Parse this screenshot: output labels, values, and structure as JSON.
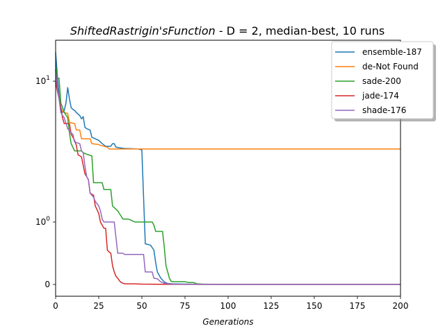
{
  "chart_data": {
    "type": "line",
    "title_italic": "ShiftedRastrigin'sFunction",
    "title_rest": " - D = 2, median-best, 10 runs",
    "xlabel": "Generations",
    "ylabel": "",
    "xlim": [
      0,
      200
    ],
    "yscale": "symlog",
    "xticks": [
      0,
      25,
      50,
      75,
      100,
      125,
      150,
      175,
      200
    ],
    "yticks": [
      {
        "value": 0,
        "label": "0"
      },
      {
        "value": 1,
        "label": "10^0"
      },
      {
        "value": 10,
        "label": "10^1"
      }
    ],
    "grid": false,
    "legend_position": "top-right",
    "series": [
      {
        "name": "ensemble-187",
        "color": "#1f77b4",
        "points": [
          [
            0,
            16
          ],
          [
            1,
            11
          ],
          [
            2,
            8
          ],
          [
            3,
            6.5
          ],
          [
            4,
            6
          ],
          [
            5,
            6.2
          ],
          [
            6,
            7
          ],
          [
            7,
            9
          ],
          [
            8,
            7.5
          ],
          [
            9,
            6.5
          ],
          [
            10,
            6.3
          ],
          [
            11,
            6.2
          ],
          [
            12,
            6
          ],
          [
            14,
            5.7
          ],
          [
            15,
            5.4
          ],
          [
            16,
            5.6
          ],
          [
            17,
            4.7
          ],
          [
            18,
            4.6
          ],
          [
            20,
            4.5
          ],
          [
            21,
            4.0
          ],
          [
            23,
            3.9
          ],
          [
            25,
            3.8
          ],
          [
            27,
            3.6
          ],
          [
            29,
            3.45
          ],
          [
            32,
            3.45
          ],
          [
            33,
            3.6
          ],
          [
            34,
            3.6
          ],
          [
            35,
            3.4
          ],
          [
            38,
            3.35
          ],
          [
            40,
            3.33
          ],
          [
            48,
            3.3
          ],
          [
            50,
            3.25
          ],
          [
            51,
            1.5
          ],
          [
            52,
            0.65
          ],
          [
            55,
            0.63
          ],
          [
            57,
            0.55
          ],
          [
            58,
            0.35
          ],
          [
            59,
            0.2
          ],
          [
            61,
            0.1
          ],
          [
            63,
            0.04
          ],
          [
            65,
            0.015
          ],
          [
            68,
            0.01
          ],
          [
            75,
            0.005
          ],
          [
            85,
            0.002
          ],
          [
            100,
            0.001
          ],
          [
            200,
            0.001
          ]
        ]
      },
      {
        "name": "de-Not Found",
        "color": "#ff7f0e",
        "points": [
          [
            0,
            12
          ],
          [
            1,
            9
          ],
          [
            2,
            7.5
          ],
          [
            3,
            6.5
          ],
          [
            4,
            6.1
          ],
          [
            5,
            6
          ],
          [
            7,
            5.9
          ],
          [
            8,
            5.1
          ],
          [
            11,
            5.0
          ],
          [
            12,
            4.5
          ],
          [
            14,
            4.5
          ],
          [
            15,
            3.9
          ],
          [
            20,
            3.9
          ],
          [
            21,
            3.6
          ],
          [
            25,
            3.55
          ],
          [
            26,
            3.5
          ],
          [
            28,
            3.45
          ],
          [
            30,
            3.4
          ],
          [
            31,
            3.3
          ],
          [
            200,
            3.3
          ]
        ]
      },
      {
        "name": "sade-200",
        "color": "#2ca02c",
        "points": [
          [
            0,
            13
          ],
          [
            1,
            10.5
          ],
          [
            2,
            10.5
          ],
          [
            3,
            7
          ],
          [
            4,
            6.5
          ],
          [
            5,
            6
          ],
          [
            7,
            5.5
          ],
          [
            8,
            4.3
          ],
          [
            9,
            3.6
          ],
          [
            10,
            3.4
          ],
          [
            11,
            3.2
          ],
          [
            15,
            3.2
          ],
          [
            16,
            3.1
          ],
          [
            19,
            3.0
          ],
          [
            21,
            2.95
          ],
          [
            22,
            1.9
          ],
          [
            27,
            1.9
          ],
          [
            28,
            1.7
          ],
          [
            32,
            1.7
          ],
          [
            33,
            1.3
          ],
          [
            36,
            1.2
          ],
          [
            38,
            1.1
          ],
          [
            39,
            1.05
          ],
          [
            42,
            1.05
          ],
          [
            43,
            1.04
          ],
          [
            46,
            1.0
          ],
          [
            56,
            1.0
          ],
          [
            57,
            0.95
          ],
          [
            58,
            0.85
          ],
          [
            62,
            0.85
          ],
          [
            63,
            0.6
          ],
          [
            64,
            0.3
          ],
          [
            66,
            0.1
          ],
          [
            67,
            0.05
          ],
          [
            68,
            0.045
          ],
          [
            75,
            0.045
          ],
          [
            77,
            0.03
          ],
          [
            80,
            0.03
          ],
          [
            82,
            0.01
          ],
          [
            85,
            0.005
          ],
          [
            90,
            0.003
          ],
          [
            100,
            0.001
          ],
          [
            200,
            0.001
          ]
        ]
      },
      {
        "name": "jade-174",
        "color": "#d62728",
        "points": [
          [
            0,
            10
          ],
          [
            1,
            8.5
          ],
          [
            2,
            7.5
          ],
          [
            3,
            6.5
          ],
          [
            4,
            5.5
          ],
          [
            5,
            5
          ],
          [
            8,
            5
          ],
          [
            9,
            4.2
          ],
          [
            10,
            4.0
          ],
          [
            11,
            3.8
          ],
          [
            12,
            3.5
          ],
          [
            13,
            3.0
          ],
          [
            15,
            2.9
          ],
          [
            17,
            2.2
          ],
          [
            18,
            2.1
          ],
          [
            19,
            2.0
          ],
          [
            20,
            1.6
          ],
          [
            22,
            1.55
          ],
          [
            23,
            1.3
          ],
          [
            25,
            1.15
          ],
          [
            26,
            1.0
          ],
          [
            27,
            0.95
          ],
          [
            28,
            0.9
          ],
          [
            29,
            0.9
          ],
          [
            30,
            0.55
          ],
          [
            31,
            0.52
          ],
          [
            32,
            0.5
          ],
          [
            33,
            0.3
          ],
          [
            34,
            0.2
          ],
          [
            35,
            0.13
          ],
          [
            36,
            0.1
          ],
          [
            37,
            0.06
          ],
          [
            38,
            0.03
          ],
          [
            39,
            0.02
          ],
          [
            40,
            0.01
          ],
          [
            45,
            0.01
          ],
          [
            50,
            0.005
          ],
          [
            60,
            0.003
          ],
          [
            70,
            0.002
          ],
          [
            80,
            0.001
          ],
          [
            200,
            0.001
          ]
        ]
      },
      {
        "name": "shade-176",
        "color": "#9467bd",
        "points": [
          [
            0,
            12
          ],
          [
            1,
            9
          ],
          [
            2,
            7.5
          ],
          [
            3,
            6
          ],
          [
            4,
            5.7
          ],
          [
            5,
            5.5
          ],
          [
            7,
            4.6
          ],
          [
            9,
            4.3
          ],
          [
            10,
            4.2
          ],
          [
            11,
            3.7
          ],
          [
            14,
            3.6
          ],
          [
            15,
            3.2
          ],
          [
            16,
            3.1
          ],
          [
            17,
            2.5
          ],
          [
            18,
            2.1
          ],
          [
            19,
            2.0
          ],
          [
            20,
            1.6
          ],
          [
            22,
            1.5
          ],
          [
            23,
            1.4
          ],
          [
            25,
            1.3
          ],
          [
            26,
            1.2
          ],
          [
            27,
            1.05
          ],
          [
            28,
            1.0
          ],
          [
            34,
            1.0
          ],
          [
            35,
            0.75
          ],
          [
            36,
            0.5
          ],
          [
            39,
            0.5
          ],
          [
            40,
            0.48
          ],
          [
            51,
            0.48
          ],
          [
            52,
            0.2
          ],
          [
            56,
            0.2
          ],
          [
            57,
            0.1
          ],
          [
            59,
            0.09
          ],
          [
            61,
            0.04
          ],
          [
            63,
            0.02
          ],
          [
            66,
            0.01
          ],
          [
            68,
            0.005
          ],
          [
            75,
            0.002
          ],
          [
            85,
            0.001
          ],
          [
            200,
            0.001
          ]
        ]
      }
    ]
  }
}
